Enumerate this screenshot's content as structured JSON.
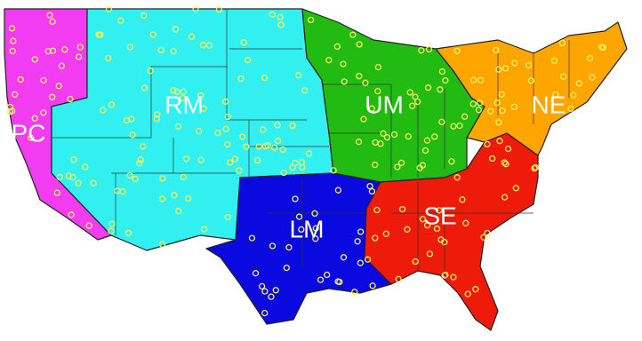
{
  "regions": [
    {
      "label": "PC"
    },
    {
      "label": "RM"
    },
    {
      "label": "UM"
    },
    {
      "label": "NE"
    },
    {
      "label": "LM"
    },
    {
      "label": "SE"
    }
  ]
}
